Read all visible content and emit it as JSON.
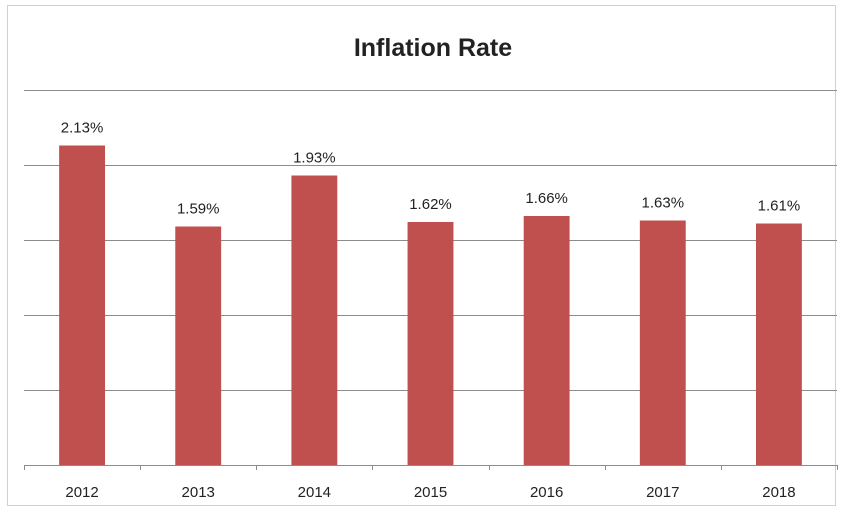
{
  "chart_data": {
    "type": "bar",
    "title": "Inflation Rate",
    "xlabel": "",
    "ylabel": "",
    "categories": [
      "2012",
      "2013",
      "2014",
      "2015",
      "2016",
      "2017",
      "2018"
    ],
    "values": [
      2.13,
      1.59,
      1.93,
      1.62,
      1.66,
      1.63,
      1.61
    ],
    "data_labels": [
      "2.13%",
      "1.59%",
      "1.93%",
      "1.62%",
      "1.66%",
      "1.63%",
      "1.61%"
    ],
    "ylim": [
      0,
      2.5
    ],
    "y_gridlines": [
      0.5,
      1.0,
      1.5,
      2.0,
      2.5
    ],
    "grid": true,
    "show_y_tick_labels": false,
    "legend": "none",
    "colors": {
      "bar": "#c0504d",
      "grid": "#8c8c8c",
      "text": "#222222"
    }
  }
}
